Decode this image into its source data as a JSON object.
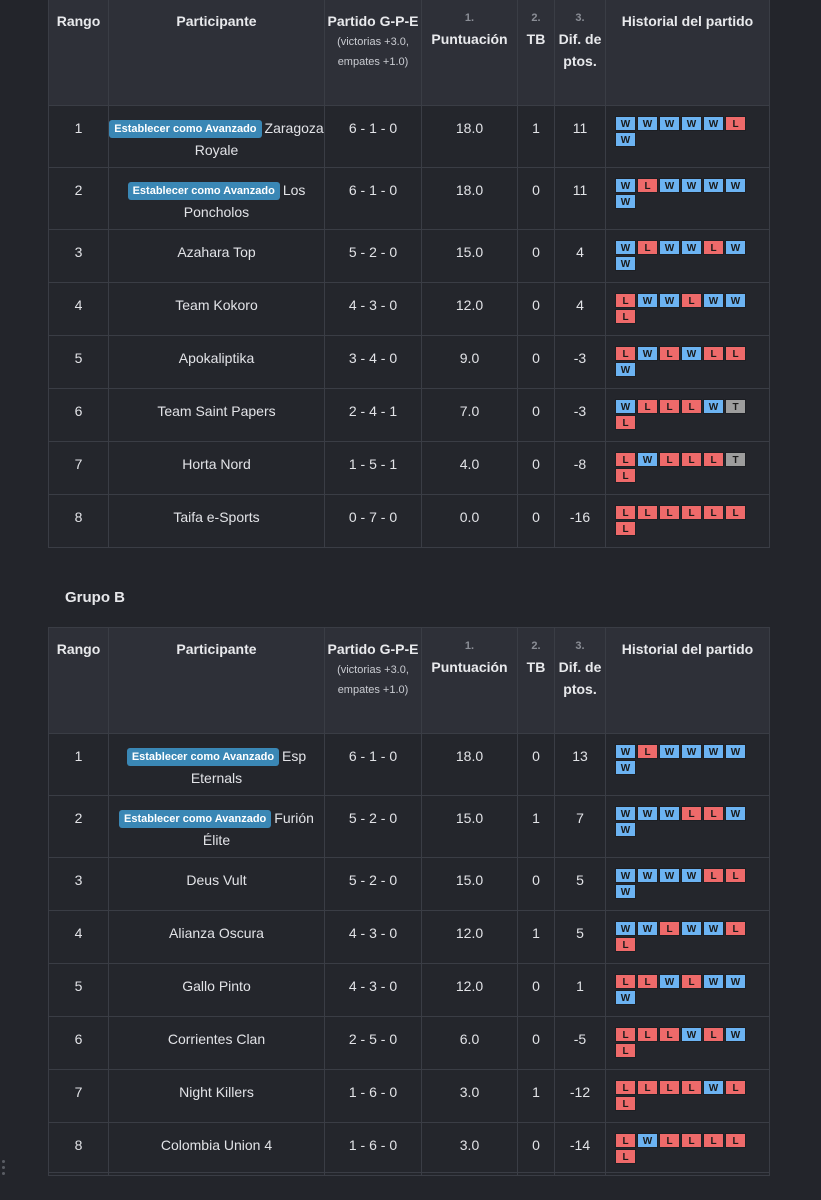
{
  "headers": {
    "rank": "Rango",
    "participant": "Participante",
    "match_main": "Partido G-P-E",
    "match_sub": "(victorias +3.0, empates +1.0)",
    "points_num": "1.",
    "points": "Puntuación",
    "tb_num": "2.",
    "tb": "TB",
    "diff_num": "3.",
    "diff": "Dif. de ptos.",
    "history": "Historial del partido"
  },
  "advance_label": "Establecer como Avanzado",
  "groupA": {
    "title": "",
    "rows": [
      {
        "rank": "1",
        "name": "Zaragoza Royale",
        "button": true,
        "record": "6 - 1 - 0",
        "points": "18.0",
        "tb": "1",
        "diff": "11",
        "history": [
          "W",
          "W",
          "W",
          "W",
          "W",
          "L",
          "W"
        ]
      },
      {
        "rank": "2",
        "name": "Los Poncholos",
        "button": true,
        "record": "6 - 1 - 0",
        "points": "18.0",
        "tb": "0",
        "diff": "11",
        "history": [
          "W",
          "L",
          "W",
          "W",
          "W",
          "W",
          "W"
        ]
      },
      {
        "rank": "3",
        "name": "Azahara Top",
        "button": false,
        "record": "5 - 2 - 0",
        "points": "15.0",
        "tb": "0",
        "diff": "4",
        "history": [
          "W",
          "L",
          "W",
          "W",
          "L",
          "W",
          "W"
        ]
      },
      {
        "rank": "4",
        "name": "Team Kokoro",
        "button": false,
        "record": "4 - 3 - 0",
        "points": "12.0",
        "tb": "0",
        "diff": "4",
        "history": [
          "L",
          "W",
          "W",
          "L",
          "W",
          "W",
          "L"
        ]
      },
      {
        "rank": "5",
        "name": "Apokaliptika",
        "button": false,
        "record": "3 - 4 - 0",
        "points": "9.0",
        "tb": "0",
        "diff": "-3",
        "history": [
          "L",
          "W",
          "L",
          "W",
          "L",
          "L",
          "W"
        ]
      },
      {
        "rank": "6",
        "name": "Team Saint Papers",
        "button": false,
        "record": "2 - 4 - 1",
        "points": "7.0",
        "tb": "0",
        "diff": "-3",
        "history": [
          "W",
          "L",
          "L",
          "L",
          "W",
          "T",
          "L"
        ]
      },
      {
        "rank": "7",
        "name": "Horta Nord",
        "button": false,
        "record": "1 - 5 - 1",
        "points": "4.0",
        "tb": "0",
        "diff": "-8",
        "history": [
          "L",
          "W",
          "L",
          "L",
          "L",
          "T",
          "L"
        ]
      },
      {
        "rank": "8",
        "name": "Taifa e-Sports",
        "button": false,
        "record": "0 - 7 - 0",
        "points": "0.0",
        "tb": "0",
        "diff": "-16",
        "history": [
          "L",
          "L",
          "L",
          "L",
          "L",
          "L",
          "L"
        ]
      }
    ]
  },
  "groupB": {
    "title": "Grupo B",
    "rows": [
      {
        "rank": "1",
        "name": "Esp Eternals",
        "button": true,
        "record": "6 - 1 - 0",
        "points": "18.0",
        "tb": "0",
        "diff": "13",
        "history": [
          "W",
          "L",
          "W",
          "W",
          "W",
          "W",
          "W"
        ]
      },
      {
        "rank": "2",
        "name": "Furión Élite",
        "button": true,
        "record": "5 - 2 - 0",
        "points": "15.0",
        "tb": "1",
        "diff": "7",
        "history": [
          "W",
          "W",
          "W",
          "L",
          "L",
          "W",
          "W"
        ]
      },
      {
        "rank": "3",
        "name": "Deus Vult",
        "button": false,
        "record": "5 - 2 - 0",
        "points": "15.0",
        "tb": "0",
        "diff": "5",
        "history": [
          "W",
          "W",
          "W",
          "W",
          "L",
          "L",
          "W"
        ]
      },
      {
        "rank": "4",
        "name": "Alianza Oscura",
        "button": false,
        "record": "4 - 3 - 0",
        "points": "12.0",
        "tb": "1",
        "diff": "5",
        "history": [
          "W",
          "W",
          "L",
          "W",
          "W",
          "L",
          "L"
        ]
      },
      {
        "rank": "5",
        "name": "Gallo Pinto",
        "button": false,
        "record": "4 - 3 - 0",
        "points": "12.0",
        "tb": "0",
        "diff": "1",
        "history": [
          "L",
          "L",
          "W",
          "L",
          "W",
          "W",
          "W"
        ]
      },
      {
        "rank": "6",
        "name": "Corrientes Clan",
        "button": false,
        "record": "2 - 5 - 0",
        "points": "6.0",
        "tb": "0",
        "diff": "-5",
        "history": [
          "L",
          "L",
          "L",
          "W",
          "L",
          "W",
          "L"
        ]
      },
      {
        "rank": "7",
        "name": "Night Killers",
        "button": false,
        "record": "1 - 6 - 0",
        "points": "3.0",
        "tb": "1",
        "diff": "-12",
        "history": [
          "L",
          "L",
          "L",
          "L",
          "W",
          "L",
          "L"
        ]
      },
      {
        "rank": "8",
        "name": "Colombia Union 4",
        "button": false,
        "record": "1 - 6 - 0",
        "points": "3.0",
        "tb": "0",
        "diff": "-14",
        "history": [
          "L",
          "W",
          "L",
          "L",
          "L",
          "L",
          "L"
        ]
      }
    ]
  }
}
